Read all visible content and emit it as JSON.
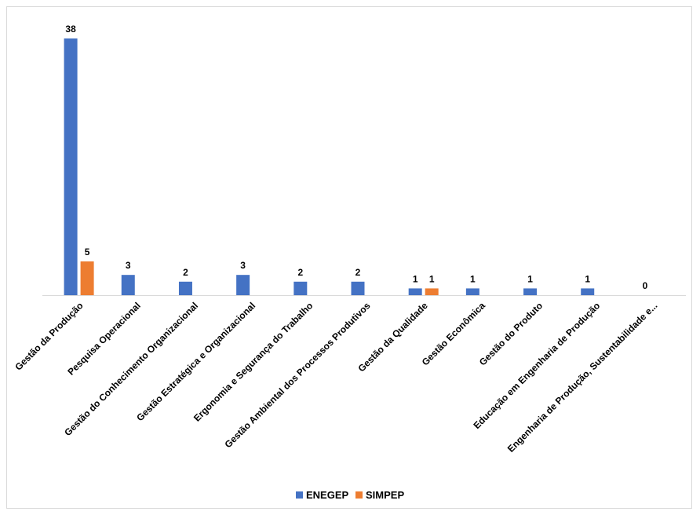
{
  "chart_data": {
    "type": "bar",
    "categories": [
      "Gestão da Produção",
      "Pesquisa Operacional",
      "Gestão do Conhecimento Organizacional",
      "Gestão Estratégica e Organizacional",
      "Ergonomia e Segurança do Trabalho",
      "Gestão Ambiental dos Processos Produtivos",
      "Gestão da Qualidade",
      "Gestão Econômica",
      "Gestão do Produto",
      "Educação em Engenharia de Produção",
      "Engenharia de Produção, Sustentabilidade e..."
    ],
    "series": [
      {
        "name": "ENEGEP",
        "color": "#4472C4",
        "values": [
          38,
          3,
          2,
          3,
          2,
          2,
          1,
          1,
          1,
          1,
          0
        ]
      },
      {
        "name": "SIMPEP",
        "color": "#ED7D31",
        "values": [
          5,
          null,
          null,
          null,
          null,
          null,
          1,
          null,
          null,
          null,
          null
        ]
      }
    ],
    "title": "",
    "xlabel": "",
    "ylabel": "",
    "ylim": [
      0,
      38
    ],
    "grid": false,
    "legend": "bottom-center"
  }
}
